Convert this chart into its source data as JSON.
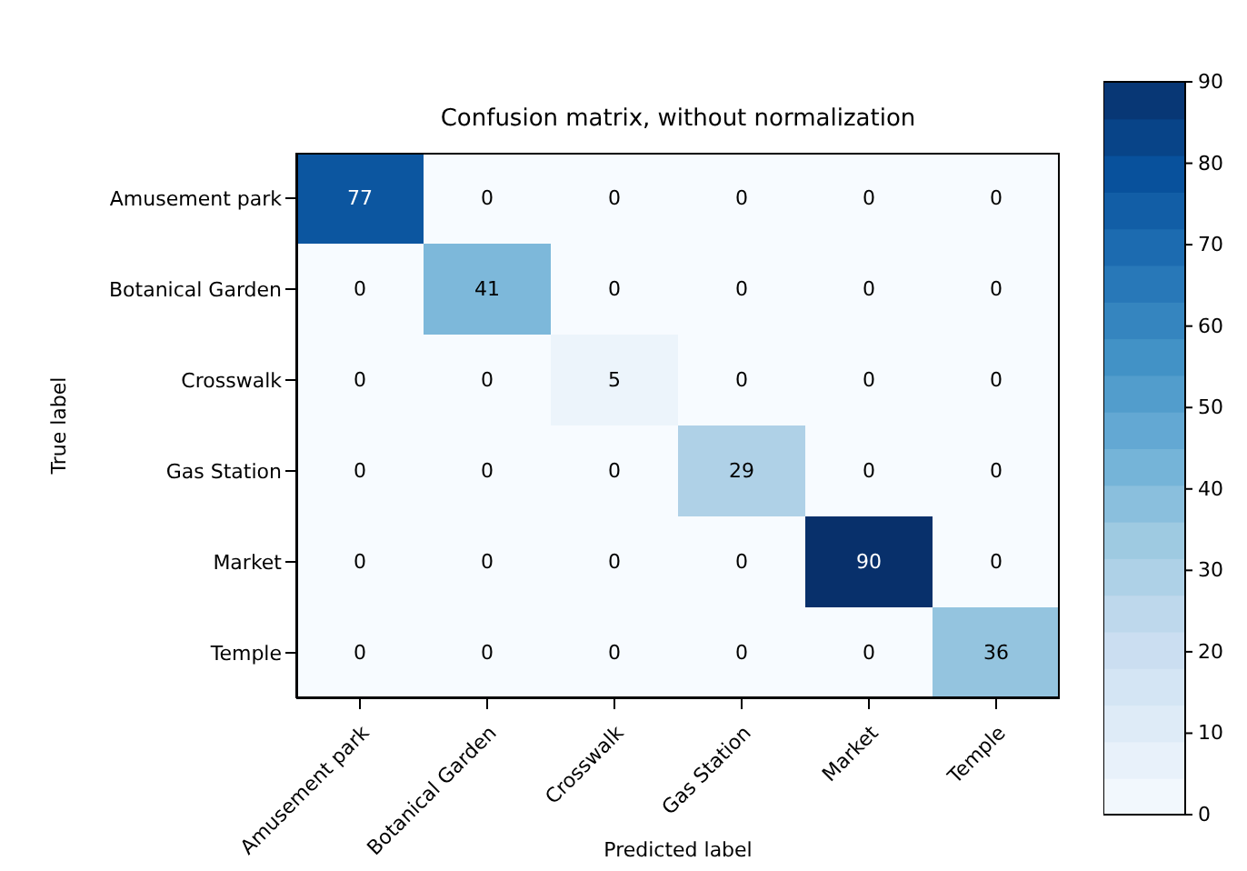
{
  "chart_data": {
    "type": "heatmap",
    "title": "Confusion matrix, without normalization",
    "xlabel": "Predicted label",
    "ylabel": "True label",
    "categories": [
      "Amusement park",
      "Botanical Garden",
      "Crosswalk",
      "Gas Station",
      "Market",
      "Temple"
    ],
    "y_categories": [
      "Amusement park",
      "Botanical Garden",
      "Crosswalk",
      "Gas Station",
      "Market",
      "Temple"
    ],
    "cells": [
      [
        77,
        0,
        0,
        0,
        0,
        0
      ],
      [
        0,
        41,
        0,
        0,
        0,
        0
      ],
      [
        0,
        0,
        5,
        0,
        0,
        0
      ],
      [
        0,
        0,
        0,
        29,
        0,
        0
      ],
      [
        0,
        0,
        0,
        0,
        90,
        0
      ],
      [
        0,
        0,
        0,
        0,
        0,
        36
      ]
    ],
    "data_labels": true,
    "clim": [
      0,
      90
    ],
    "cticks": [
      0,
      10,
      20,
      30,
      40,
      50,
      60,
      70,
      80,
      90
    ]
  }
}
